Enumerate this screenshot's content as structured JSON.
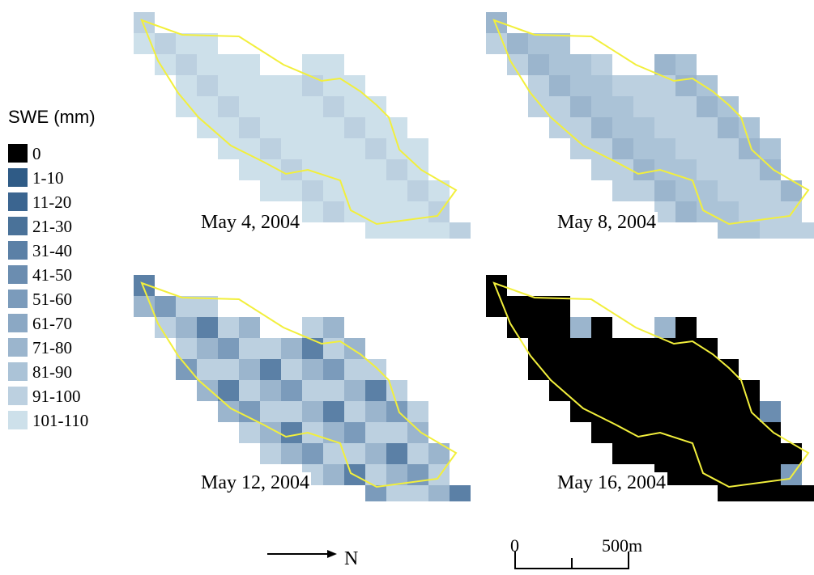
{
  "legend": {
    "title": "SWE (mm)",
    "items": [
      {
        "label": "0",
        "color": "#000000"
      },
      {
        "label": "1-10",
        "color": "#2f5b86"
      },
      {
        "label": "11-20",
        "color": "#3b6590"
      },
      {
        "label": "21-30",
        "color": "#4a7299"
      },
      {
        "label": "31-40",
        "color": "#5b80a6"
      },
      {
        "label": "41-50",
        "color": "#6b8db0"
      },
      {
        "label": "51-60",
        "color": "#7b9bbb"
      },
      {
        "label": "61-70",
        "color": "#8ba8c4"
      },
      {
        "label": "71-80",
        "color": "#9bb5cd"
      },
      {
        "label": "81-90",
        "color": "#abc3d7"
      },
      {
        "label": "91-100",
        "color": "#bcd0e0"
      },
      {
        "label": "101-110",
        "color": "#cde0ea"
      }
    ]
  },
  "boundary_color": "#f2ef3c",
  "maps": [
    {
      "caption": "May 4, 2004",
      "grid": [
        "000000000000000000000000000000",
        "001110000000000000000000000000",
        "001111000000000000000000000000",
        "000111111111000000000000000000",
        "000011111111110000000000000000",
        "000001111111111100000000000000",
        "000000111111111110000000000000",
        "000000011111111111000000000000",
        "000000001111111111100000000000",
        "000000001111111111110000000000",
        "000000000111111111111000000000",
        "000000000001111111111100000000",
        "000000000000001111111110000000",
        "000000000000000011111110000000",
        "000000000000000000000000000000"
      ],
      "base": 11,
      "dark": []
    },
    {
      "caption": "May 8, 2004",
      "grid": [],
      "base": 10,
      "dark": []
    },
    {
      "caption": "May 12, 2004",
      "grid": [],
      "base": 9,
      "dark": []
    },
    {
      "caption": "May 16, 2004",
      "grid": [],
      "base": 0,
      "dark": []
    }
  ],
  "north_label": "N",
  "scale": {
    "zero_label": "0",
    "end_label": "500m"
  }
}
